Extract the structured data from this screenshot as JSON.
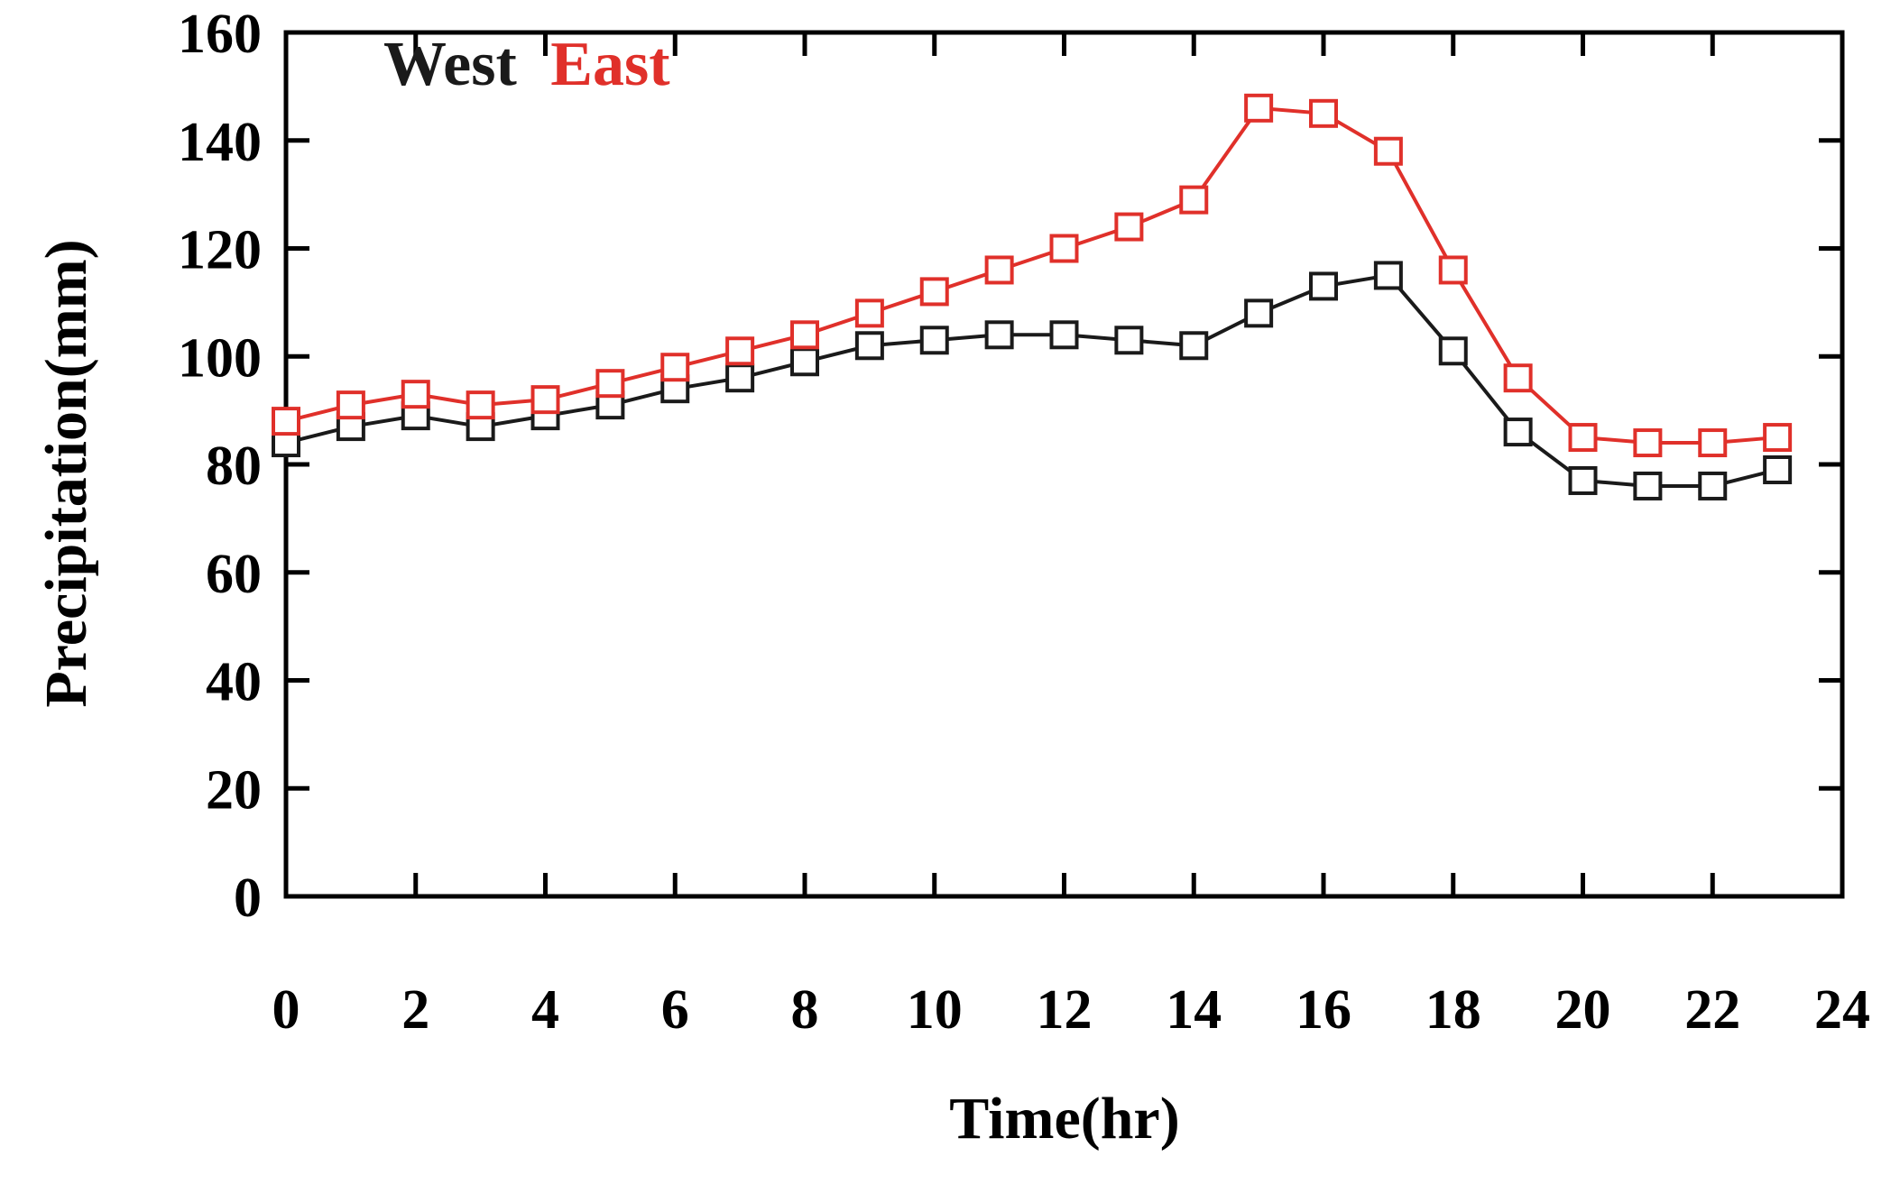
{
  "chart_data": {
    "type": "line",
    "title": "",
    "xlabel": "Time(hr)",
    "ylabel": "Precipitation(mm)",
    "xlim": [
      0,
      24
    ],
    "ylim": [
      0,
      160
    ],
    "xticks": [
      0,
      2,
      4,
      6,
      8,
      10,
      12,
      14,
      16,
      18,
      20,
      22,
      24
    ],
    "yticks": [
      0,
      20,
      40,
      60,
      80,
      100,
      120,
      140,
      160
    ],
    "grid": false,
    "legend": {
      "placement": "top-left",
      "entries": [
        "West",
        "East"
      ]
    },
    "x": [
      0,
      1,
      2,
      3,
      4,
      5,
      6,
      7,
      8,
      9,
      10,
      11,
      12,
      13,
      14,
      15,
      16,
      17,
      18,
      19,
      20,
      21,
      22,
      23
    ],
    "series": [
      {
        "name": "West",
        "color": "#1a1a1a",
        "marker": "open-square",
        "values": [
          84,
          87,
          89,
          87,
          89,
          91,
          94,
          96,
          99,
          102,
          103,
          104,
          104,
          103,
          102,
          108,
          113,
          115,
          101,
          86,
          77,
          76,
          76,
          79
        ]
      },
      {
        "name": "East",
        "color": "#e0302a",
        "marker": "open-square",
        "values": [
          88,
          91,
          93,
          91,
          92,
          95,
          98,
          101,
          104,
          108,
          112,
          116,
          120,
          124,
          129,
          146,
          145,
          138,
          116,
          96,
          85,
          84,
          84,
          85
        ]
      }
    ]
  }
}
